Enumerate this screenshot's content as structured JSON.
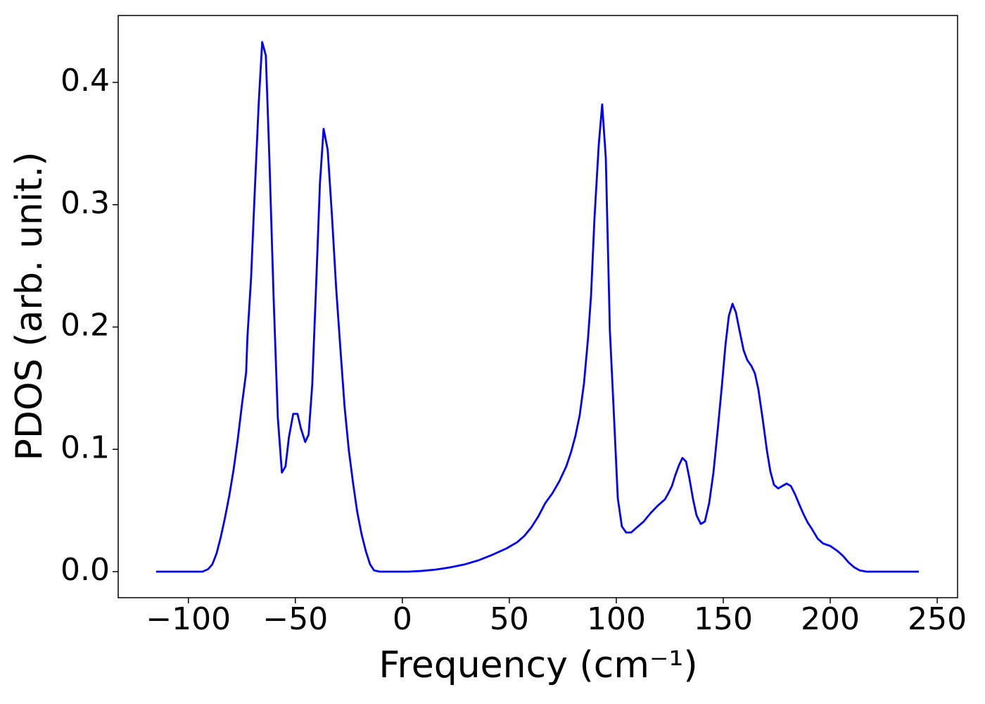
{
  "chart_data": {
    "type": "line",
    "x_label": "Frequency (cm⁻¹)",
    "y_label": "PDOS (arb. unit.)",
    "color": "#0000ff",
    "xlim": [
      -132.8,
      259.5
    ],
    "ylim": [
      -0.0213,
      0.4547
    ],
    "xticks": [
      {
        "value": -100,
        "label": "−100"
      },
      {
        "value": -50,
        "label": "−50"
      },
      0,
      50,
      100,
      150,
      200,
      250
    ],
    "yticks": [
      {
        "value": 0,
        "label": "0.0"
      },
      0.1,
      0.2,
      0.3,
      0.4
    ],
    "x": [
      -115.1,
      -93.4,
      -90.8,
      -88.8,
      -86.8,
      -84.9,
      -82.9,
      -80.9,
      -78.9,
      -77.0,
      -75.0,
      -73.0,
      -72.4,
      -70.7,
      -69.1,
      -67.1,
      -65.5,
      -63.8,
      -62.2,
      -60.2,
      -58.2,
      -56.3,
      -54.6,
      -53.0,
      -51.0,
      -49.0,
      -47.4,
      -45.4,
      -43.8,
      -42.1,
      -40.1,
      -38.5,
      -36.8,
      -34.9,
      -32.9,
      -30.9,
      -28.9,
      -27.0,
      -25.0,
      -23.0,
      -21.1,
      -19.1,
      -17.1,
      -15.1,
      -13.2,
      -10.5,
      2.6,
      9.2,
      15.8,
      22.4,
      28.9,
      35.5,
      42.1,
      48.7,
      53.6,
      56.9,
      60.2,
      63.5,
      66.8,
      70.1,
      73.4,
      76.6,
      78.9,
      80.9,
      82.9,
      84.9,
      86.8,
      88.2,
      89.8,
      91.8,
      93.4,
      95.1,
      97.0,
      99.0,
      100.7,
      102.6,
      104.6,
      106.9,
      109.5,
      112.8,
      116.1,
      119.4,
      122.7,
      124.3,
      126.0,
      127.6,
      129.3,
      130.9,
      132.6,
      134.2,
      135.9,
      137.5,
      139.5,
      141.4,
      143.4,
      145.4,
      147.4,
      149.3,
      151.0,
      152.6,
      154.3,
      155.9,
      157.6,
      159.5,
      161.2,
      163.2,
      164.8,
      166.4,
      168.4,
      170.4,
      172.0,
      173.7,
      175.7,
      177.6,
      179.6,
      181.6,
      183.6,
      185.5,
      187.5,
      189.5,
      191.4,
      194.1,
      196.7,
      200.0,
      203.3,
      205.9,
      208.6,
      211.2,
      213.8,
      217.1,
      241.4
    ],
    "values": [
      0,
      0,
      0.002,
      0.006,
      0.015,
      0.028,
      0.044,
      0.062,
      0.083,
      0.107,
      0.136,
      0.163,
      0.192,
      0.24,
      0.306,
      0.384,
      0.433,
      0.422,
      0.341,
      0.226,
      0.126,
      0.081,
      0.086,
      0.11,
      0.129,
      0.129,
      0.117,
      0.106,
      0.112,
      0.153,
      0.243,
      0.318,
      0.362,
      0.345,
      0.291,
      0.231,
      0.181,
      0.135,
      0.099,
      0.072,
      0.049,
      0.031,
      0.017,
      0.006,
      0.001,
      0,
      0,
      0.0006,
      0.0017,
      0.0035,
      0.0058,
      0.0092,
      0.0138,
      0.019,
      0.024,
      0.029,
      0.036,
      0.045,
      0.056,
      0.064,
      0.074,
      0.086,
      0.098,
      0.111,
      0.128,
      0.154,
      0.191,
      0.226,
      0.289,
      0.349,
      0.382,
      0.338,
      0.197,
      0.124,
      0.06,
      0.037,
      0.032,
      0.032,
      0.036,
      0.041,
      0.048,
      0.054,
      0.059,
      0.064,
      0.07,
      0.079,
      0.087,
      0.093,
      0.09,
      0.076,
      0.059,
      0.046,
      0.039,
      0.041,
      0.056,
      0.081,
      0.116,
      0.151,
      0.185,
      0.209,
      0.219,
      0.212,
      0.197,
      0.181,
      0.173,
      0.168,
      0.162,
      0.149,
      0.125,
      0.099,
      0.082,
      0.071,
      0.068,
      0.07,
      0.072,
      0.07,
      0.063,
      0.055,
      0.047,
      0.04,
      0.035,
      0.027,
      0.023,
      0.021,
      0.017,
      0.013,
      0.0075,
      0.0035,
      0.001,
      0,
      0
    ]
  }
}
